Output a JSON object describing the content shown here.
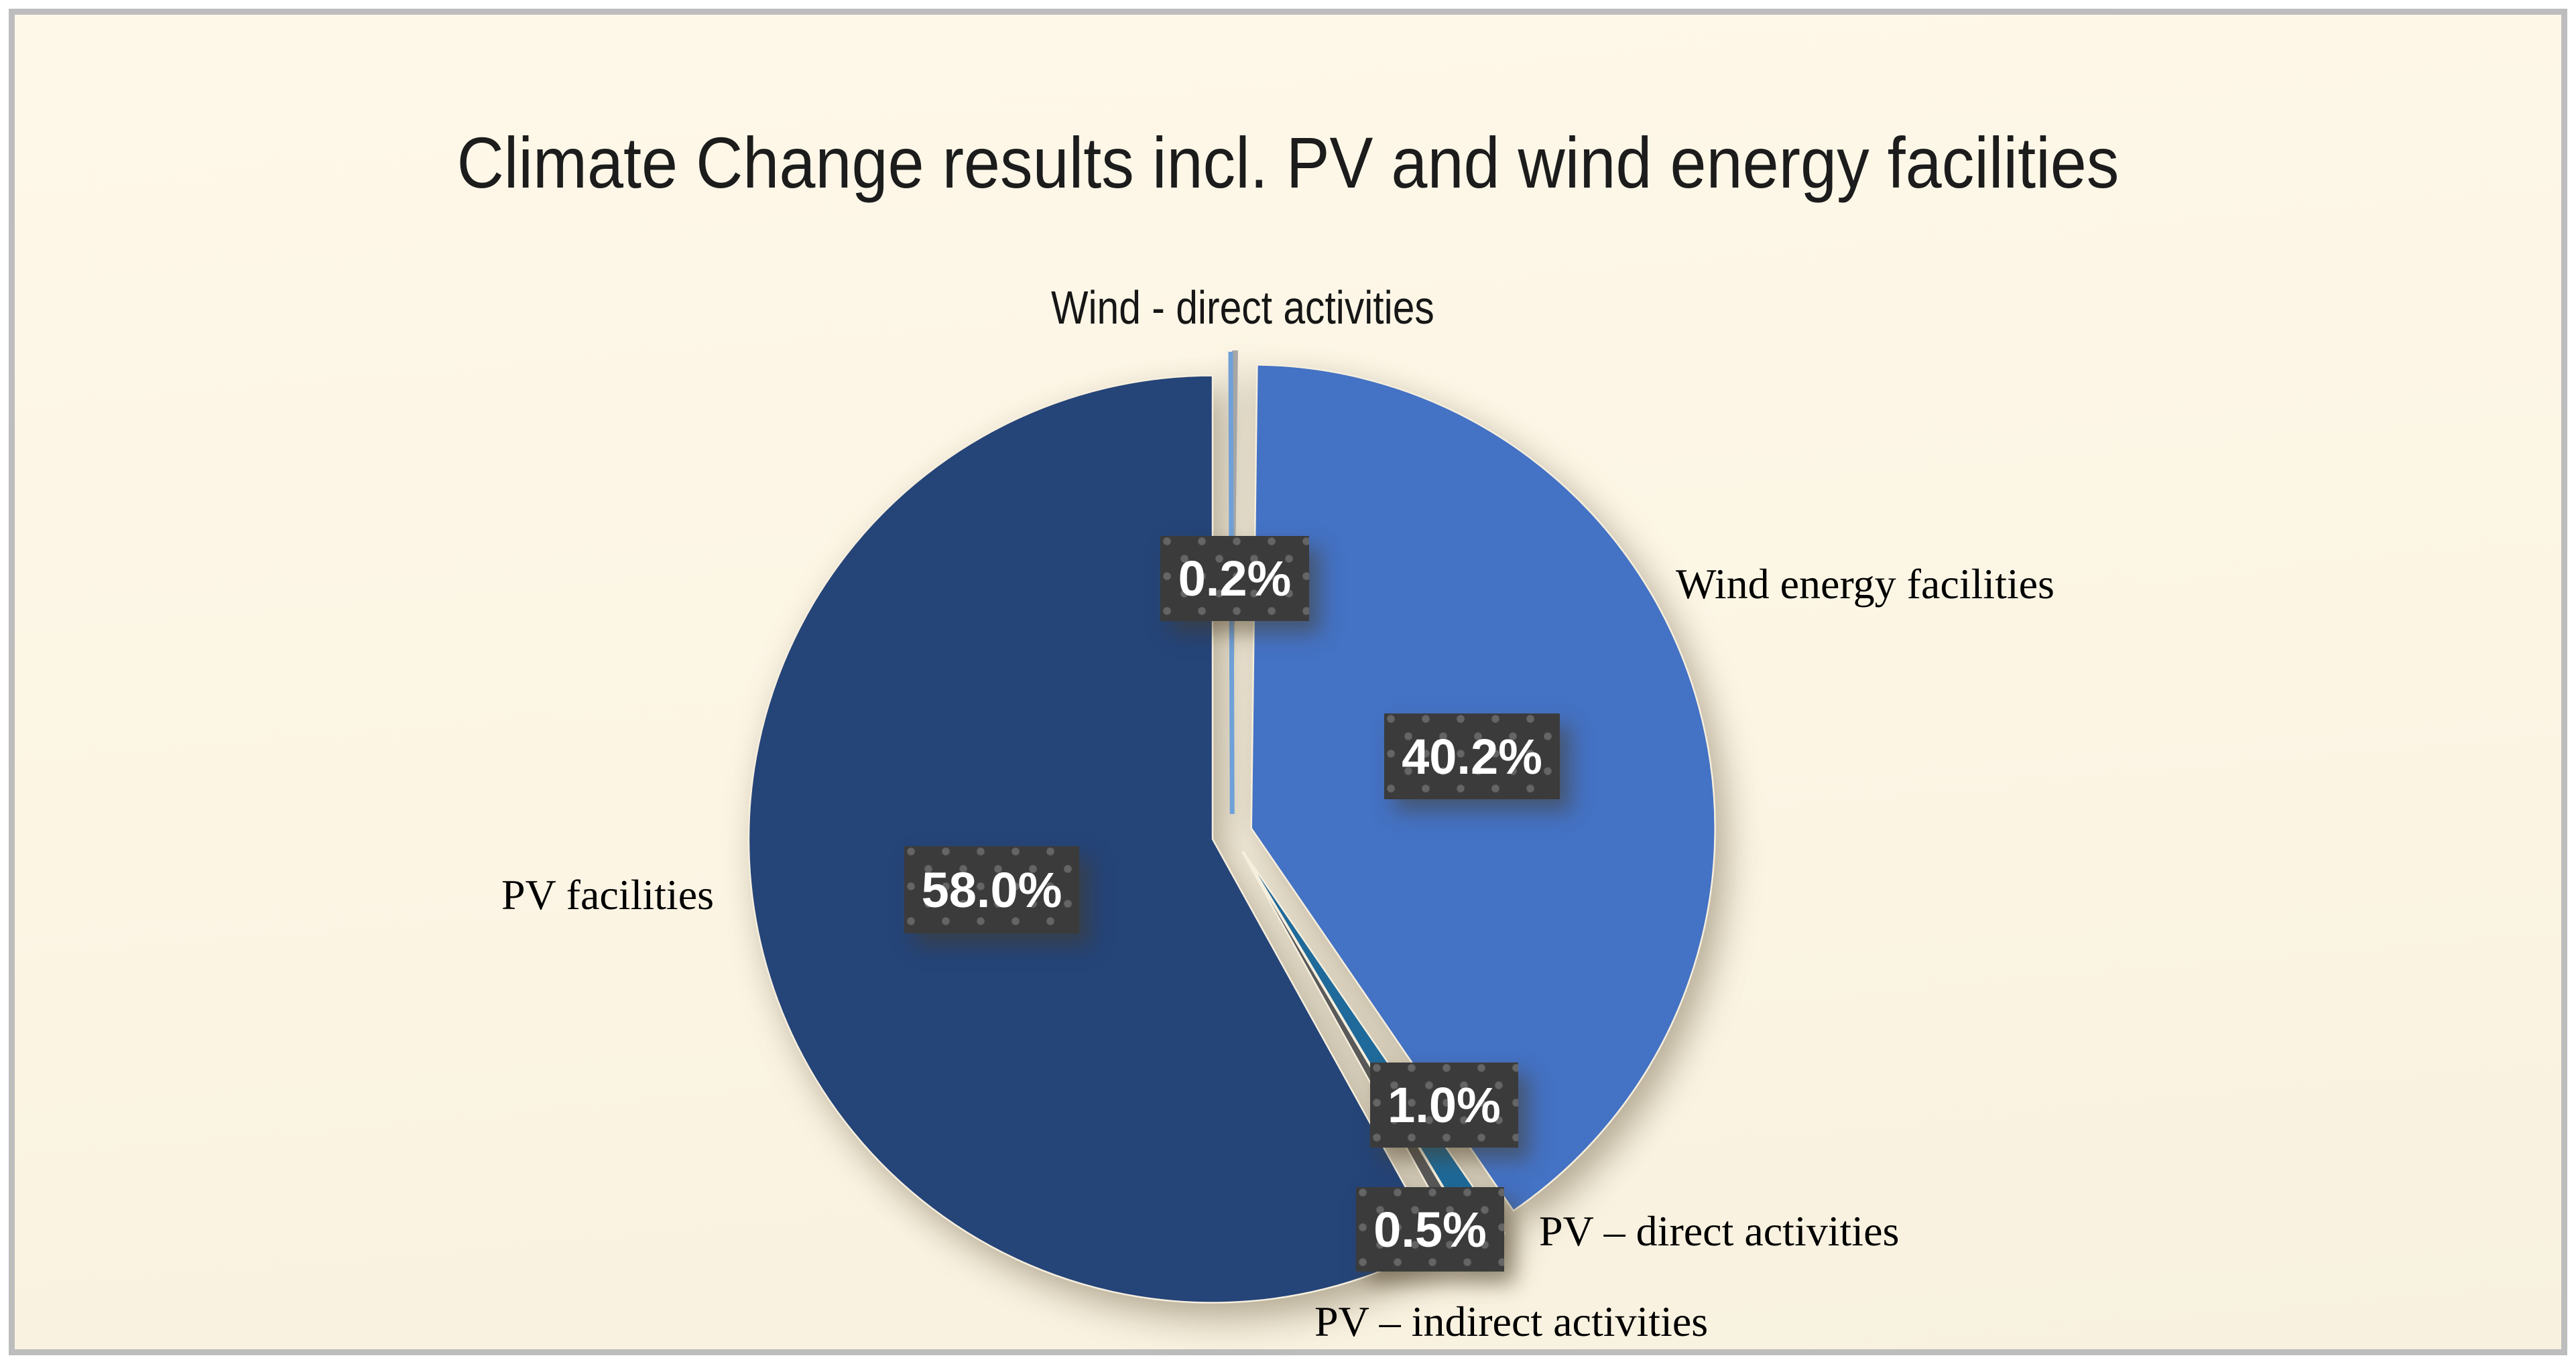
{
  "frame": {
    "border_color": "#bdbdbd",
    "background_color": "#fcf5e4"
  },
  "chart_data": {
    "type": "pie",
    "title": "Climate Change results incl. PV and wind energy facilities",
    "direction": "clockwise",
    "start_angle_deg": 0,
    "exploded": true,
    "legend_position": "none",
    "slices": [
      {
        "label": "Wind - direct activities",
        "value": 0.2,
        "value_label": "0.2%",
        "color": "#a6a6a6",
        "edge_color": "#6fa0d8"
      },
      {
        "label": "Wind energy facilities",
        "value": 40.2,
        "value_label": "40.2%",
        "color": "#4472c4"
      },
      {
        "label": "PV – direct activities",
        "value": 1.0,
        "value_label": "1.0%",
        "color": "#1f6a9a"
      },
      {
        "label": "PV – indirect activities",
        "value": 0.5,
        "value_label": "0.5%",
        "color": "#595959"
      },
      {
        "label": "PV facilities",
        "value": 58.0,
        "value_label": "58.0%",
        "color": "#254478"
      }
    ],
    "value_label_style": {
      "background": "#3b3b3b",
      "dot_color": "#656565",
      "text_color": "#ffffff"
    }
  }
}
